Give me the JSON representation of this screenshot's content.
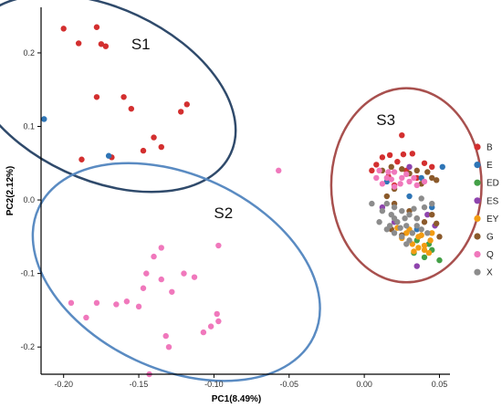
{
  "chart_data": {
    "type": "scatter",
    "xlabel": "PC1(8.49%)",
    "ylabel": "PC2(2.12%)",
    "xlim": [
      -0.215,
      0.057
    ],
    "ylim": [
      -0.237,
      0.262
    ],
    "x_ticks": [
      -0.2,
      -0.15,
      -0.1,
      -0.05,
      0.0,
      0.05
    ],
    "x_tick_labels": [
      "-0.20",
      "-0.15",
      "-0.10",
      "-0.05",
      "0.00",
      "0.05"
    ],
    "y_ticks": [
      -0.2,
      -0.1,
      0.0,
      0.1,
      0.2
    ],
    "y_tick_labels": [
      "-0.2",
      "-0.1",
      "0.0",
      "0.1",
      "0.2"
    ],
    "grid": false,
    "legend_position": "right",
    "clusters": [
      {
        "label": "S1",
        "cx": -0.175,
        "cy": 0.145,
        "rx": 0.095,
        "ry": 0.117,
        "rotate": 25,
        "label_x": -0.155,
        "label_y": 0.205,
        "color": "#2f4a6b"
      },
      {
        "label": "S2",
        "cx": -0.125,
        "cy": -0.098,
        "rx": 0.101,
        "ry": 0.132,
        "rotate": 25,
        "label_x": -0.1,
        "label_y": -0.025,
        "color": "#5a8bc2"
      },
      {
        "label": "S3",
        "cx": 0.028,
        "cy": 0.02,
        "rx": 0.05,
        "ry": 0.132,
        "rotate": 0,
        "label_x": 0.008,
        "label_y": 0.102,
        "color": "#a8504e"
      }
    ],
    "series": [
      {
        "name": "B",
        "color": "#d32f2f",
        "points": [
          [
            -0.2,
            0.233
          ],
          [
            -0.178,
            0.235
          ],
          [
            -0.19,
            0.213
          ],
          [
            -0.175,
            0.212
          ],
          [
            -0.172,
            0.209
          ],
          [
            -0.178,
            0.14
          ],
          [
            -0.16,
            0.14
          ],
          [
            -0.155,
            0.124
          ],
          [
            -0.118,
            0.13
          ],
          [
            -0.122,
            0.12
          ],
          [
            -0.14,
            0.085
          ],
          [
            -0.135,
            0.072
          ],
          [
            -0.147,
            0.067
          ],
          [
            -0.188,
            0.055
          ],
          [
            -0.168,
            0.058
          ],
          [
            0.025,
            0.088
          ],
          [
            0.017,
            0.061
          ],
          [
            0.026,
            0.062
          ],
          [
            0.032,
            0.063
          ],
          [
            0.012,
            0.058
          ],
          [
            0.04,
            0.05
          ],
          [
            0.008,
            0.048
          ],
          [
            0.028,
            0.04
          ],
          [
            0.016,
            0.032
          ],
          [
            0.035,
            0.03
          ],
          [
            0.02,
            0.02
          ],
          [
            0.045,
            0.045
          ],
          [
            0.005,
            0.04
          ],
          [
            0.022,
            0.052
          ]
        ]
      },
      {
        "name": "E",
        "color": "#2e75b6",
        "points": [
          [
            -0.213,
            0.11
          ],
          [
            -0.17,
            0.06
          ],
          [
            0.03,
            0.005
          ],
          [
            0.038,
            0.03
          ],
          [
            0.052,
            0.045
          ],
          [
            0.045,
            -0.01
          ],
          [
            0.035,
            -0.04
          ],
          [
            0.015,
            0.025
          ]
        ]
      },
      {
        "name": "ED",
        "color": "#43a047",
        "points": [
          [
            0.045,
            -0.068
          ],
          [
            0.04,
            -0.078
          ],
          [
            0.033,
            -0.072
          ],
          [
            0.05,
            -0.082
          ],
          [
            0.043,
            -0.06
          ],
          [
            0.035,
            -0.055
          ]
        ]
      },
      {
        "name": "ES",
        "color": "#8e44ad",
        "points": [
          [
            0.035,
            -0.09
          ],
          [
            0.042,
            -0.02
          ],
          [
            0.02,
            -0.03
          ],
          [
            0.047,
            -0.035
          ],
          [
            0.03,
            0.045
          ],
          [
            0.012,
            -0.01
          ]
        ]
      },
      {
        "name": "EY",
        "color": "#f39c12",
        "points": [
          [
            0.025,
            -0.052
          ],
          [
            0.032,
            -0.06
          ],
          [
            0.036,
            -0.065
          ],
          [
            0.04,
            -0.062
          ],
          [
            0.044,
            -0.055
          ],
          [
            0.038,
            -0.048
          ],
          [
            0.028,
            -0.045
          ],
          [
            0.033,
            -0.07
          ],
          [
            0.043,
            -0.072
          ],
          [
            0.022,
            -0.038
          ],
          [
            0.03,
            -0.04
          ],
          [
            0.045,
            -0.045
          ],
          [
            0.04,
            -0.068
          ],
          [
            0.036,
            -0.05
          ]
        ]
      },
      {
        "name": "G",
        "color": "#8b5a2b",
        "points": [
          [
            0.012,
            0.04
          ],
          [
            0.018,
            0.045
          ],
          [
            0.025,
            0.042
          ],
          [
            0.03,
            0.036
          ],
          [
            0.035,
            0.04
          ],
          [
            0.042,
            0.038
          ],
          [
            0.045,
            0.03
          ],
          [
            0.048,
            0.027
          ],
          [
            0.038,
            0.022
          ],
          [
            0.02,
            0.015
          ],
          [
            0.015,
            0.005
          ],
          [
            0.045,
            -0.02
          ],
          [
            0.04,
            -0.03
          ],
          [
            0.035,
            -0.025
          ],
          [
            0.048,
            -0.032
          ],
          [
            0.03,
            -0.015
          ],
          [
            0.02,
            -0.005
          ],
          [
            0.025,
            -0.048
          ],
          [
            0.018,
            -0.04
          ],
          [
            0.05,
            -0.05
          ]
        ]
      },
      {
        "name": "Q",
        "color": "#f078bc",
        "points": [
          [
            -0.057,
            0.04
          ],
          [
            -0.097,
            -0.062
          ],
          [
            -0.135,
            -0.065
          ],
          [
            -0.14,
            -0.077
          ],
          [
            -0.145,
            -0.1
          ],
          [
            -0.135,
            -0.108
          ],
          [
            -0.12,
            -0.1
          ],
          [
            -0.147,
            -0.12
          ],
          [
            -0.128,
            -0.125
          ],
          [
            -0.113,
            -0.105
          ],
          [
            -0.195,
            -0.14
          ],
          [
            -0.185,
            -0.16
          ],
          [
            -0.178,
            -0.14
          ],
          [
            -0.165,
            -0.142
          ],
          [
            -0.158,
            -0.138
          ],
          [
            -0.15,
            -0.145
          ],
          [
            -0.098,
            -0.155
          ],
          [
            -0.097,
            -0.165
          ],
          [
            -0.102,
            -0.172
          ],
          [
            -0.107,
            -0.18
          ],
          [
            -0.13,
            -0.2
          ],
          [
            -0.132,
            -0.185
          ],
          [
            -0.143,
            -0.237
          ],
          [
            0.01,
            0.04
          ],
          [
            0.015,
            0.03
          ],
          [
            0.02,
            0.038
          ],
          [
            0.025,
            0.03
          ],
          [
            0.03,
            0.025
          ],
          [
            0.012,
            0.022
          ],
          [
            0.02,
            0.018
          ],
          [
            0.028,
            0.035
          ],
          [
            0.035,
            0.02
          ],
          [
            0.04,
            0.025
          ],
          [
            0.008,
            0.03
          ],
          [
            0.018,
            0.028
          ],
          [
            0.033,
            0.03
          ],
          [
            0.024,
            0.022
          ],
          [
            0.016,
            0.038
          ]
        ]
      },
      {
        "name": "X",
        "color": "#8c8c8c",
        "points": [
          [
            0.015,
            -0.005
          ],
          [
            0.02,
            -0.01
          ],
          [
            0.025,
            -0.015
          ],
          [
            0.03,
            -0.02
          ],
          [
            0.035,
            -0.025
          ],
          [
            0.018,
            -0.02
          ],
          [
            0.022,
            -0.03
          ],
          [
            0.028,
            -0.035
          ],
          [
            0.032,
            -0.045
          ],
          [
            0.038,
            -0.04
          ],
          [
            0.025,
            -0.05
          ],
          [
            0.03,
            -0.055
          ],
          [
            0.02,
            -0.045
          ],
          [
            0.015,
            -0.04
          ],
          [
            0.04,
            -0.01
          ],
          [
            0.045,
            -0.005
          ],
          [
            0.038,
            0.002
          ],
          [
            0.01,
            -0.03
          ],
          [
            0.012,
            -0.015
          ],
          [
            0.035,
            -0.035
          ],
          [
            0.042,
            -0.045
          ],
          [
            0.028,
            -0.06
          ],
          [
            0.024,
            -0.038
          ],
          [
            0.02,
            -0.025
          ],
          [
            0.005,
            -0.005
          ],
          [
            0.017,
            -0.035
          ],
          [
            0.027,
            -0.025
          ],
          [
            0.033,
            -0.012
          ]
        ]
      }
    ]
  }
}
